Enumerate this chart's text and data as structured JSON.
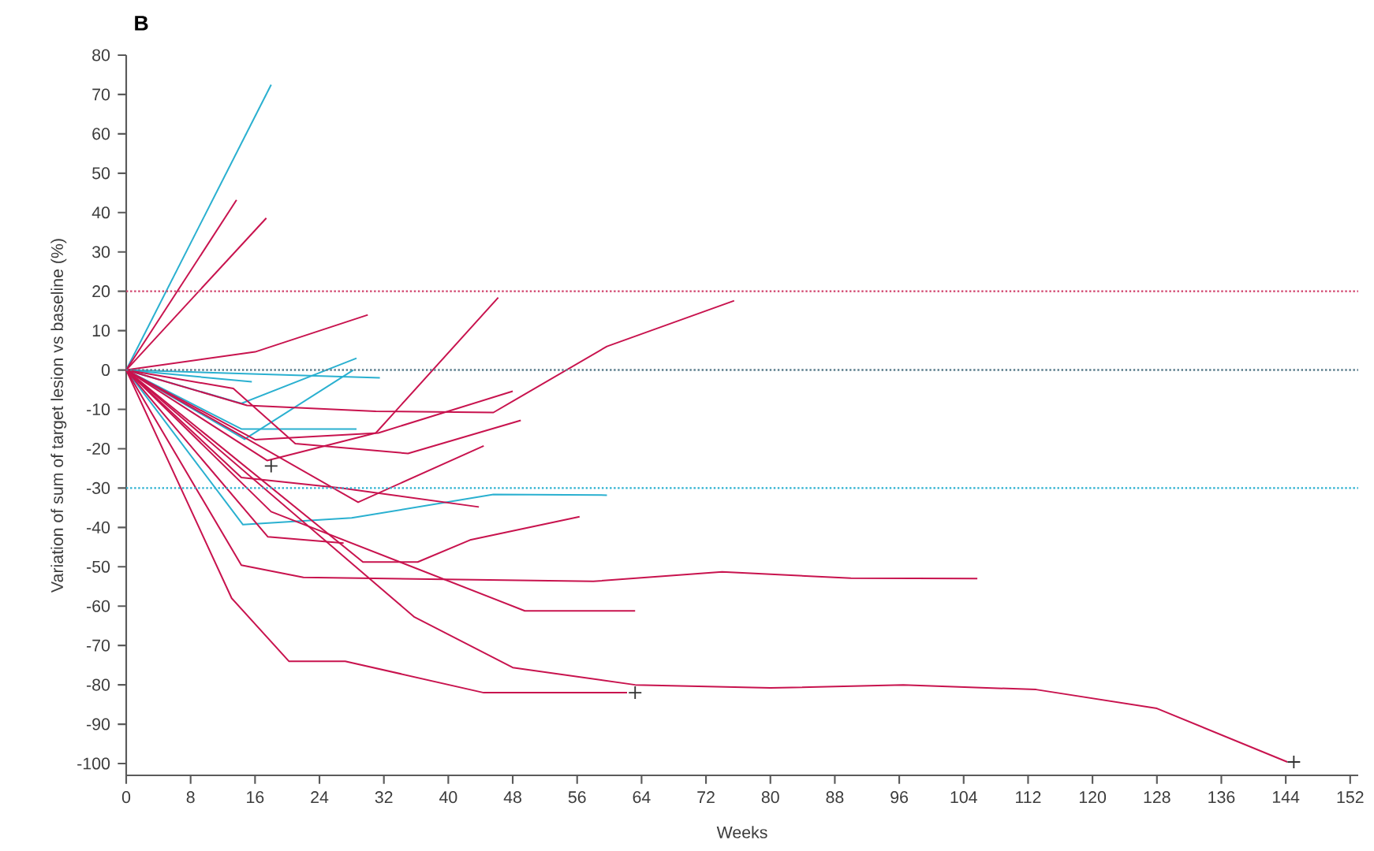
{
  "chart_data": {
    "type": "line",
    "title": "B",
    "xlabel": "Weeks",
    "ylabel": "Variation of sum of target lesion vs baseline (%)",
    "xlim": [
      0,
      153
    ],
    "ylim": [
      -103,
      80
    ],
    "xticks": [
      0,
      8,
      16,
      24,
      32,
      40,
      48,
      56,
      64,
      72,
      80,
      88,
      96,
      104,
      112,
      120,
      128,
      136,
      144,
      152
    ],
    "yticks": [
      -100,
      -90,
      -80,
      -70,
      -60,
      -50,
      -40,
      -30,
      -20,
      -10,
      0,
      10,
      20,
      30,
      40,
      50,
      60,
      70,
      80
    ],
    "grid": false,
    "marker": "none",
    "line_style": "solid",
    "ref_lines": [
      {
        "axis": "y",
        "value": 20,
        "color": "#d0416b",
        "line_style": "dotted"
      },
      {
        "axis": "y",
        "value": 0,
        "color": "#5a7d8c",
        "line_style": "dotted"
      },
      {
        "axis": "y",
        "value": -30,
        "color": "#2ab0d0",
        "line_style": "dotted"
      }
    ],
    "series": [
      {
        "color": "#2ab0d0",
        "x": [
          0,
          18
        ],
        "values": [
          0,
          72.5
        ]
      },
      {
        "color": "#2ab0d0",
        "x": [
          0,
          15.6
        ],
        "values": [
          0,
          -3
        ]
      },
      {
        "color": "#2ab0d0",
        "x": [
          0,
          31.5
        ],
        "values": [
          0,
          -2
        ]
      },
      {
        "color": "#2ab0d0",
        "x": [
          0,
          14.3,
          28.6
        ],
        "values": [
          0,
          -8.5,
          3
        ]
      },
      {
        "color": "#2ab0d0",
        "x": [
          0,
          14.7,
          28.2
        ],
        "values": [
          0,
          -17.6,
          0
        ]
      },
      {
        "color": "#2ab0d0",
        "x": [
          0,
          14.3,
          28.6
        ],
        "values": [
          0,
          -15,
          -15
        ]
      },
      {
        "color": "#2ab0d0",
        "x": [
          0,
          14.5,
          28,
          45.6,
          59.7
        ],
        "values": [
          0,
          -39.3,
          -37.6,
          -31.6,
          -31.8
        ]
      },
      {
        "color": "#c8134e",
        "x": [
          0,
          13.7
        ],
        "values": [
          0,
          43.2
        ]
      },
      {
        "color": "#c8134e",
        "x": [
          0,
          17.4
        ],
        "values": [
          0,
          38.6
        ]
      },
      {
        "color": "#c8134e",
        "x": [
          0,
          16,
          30
        ],
        "values": [
          0,
          4.6,
          14
        ]
      },
      {
        "color": "#c8134e",
        "x": [
          0,
          13.3,
          21,
          35,
          49
        ],
        "values": [
          0,
          -4.7,
          -18.7,
          -21.2,
          -12.8
        ]
      },
      {
        "color": "#c8134e",
        "x": [
          0,
          15,
          31,
          45.6,
          59.7,
          75.5
        ],
        "values": [
          0,
          -9,
          -10.5,
          -10.8,
          6,
          17.6
        ]
      },
      {
        "color": "#c8134e",
        "x": [
          0,
          16,
          31.3,
          48
        ],
        "values": [
          0,
          -17.7,
          -16,
          -5.4
        ]
      },
      {
        "color": "#c8134e",
        "x": [
          0,
          17.5,
          31,
          46.2
        ],
        "values": [
          0,
          -23,
          -16,
          18.4
        ]
      },
      {
        "color": "#c8134e",
        "x": [
          0,
          28.8,
          44.4
        ],
        "values": [
          0,
          -33.6,
          -19.3
        ]
      },
      {
        "color": "#c8134e",
        "x": [
          0,
          14.3,
          26.8,
          43.8
        ],
        "values": [
          0,
          -27.3,
          -30,
          -34.8
        ]
      },
      {
        "color": "#c8134e",
        "x": [
          0,
          17.6,
          27
        ],
        "values": [
          0,
          -42.4,
          -44
        ]
      },
      {
        "color": "#c8134e",
        "x": [
          0,
          14.3,
          22,
          58,
          74,
          90,
          105.7
        ],
        "values": [
          0,
          -49.6,
          -52.7,
          -53.7,
          -51.3,
          -52.9,
          -53
        ]
      },
      {
        "color": "#c8134e",
        "x": [
          0,
          29.4,
          36.2,
          42.7,
          56.3
        ],
        "values": [
          0,
          -48.8,
          -48.8,
          -43.2,
          -37.3
        ]
      },
      {
        "color": "#c8134e",
        "x": [
          0,
          18,
          49.5,
          63.2
        ],
        "values": [
          0,
          -36,
          -61.2,
          -61.2
        ]
      },
      {
        "color": "#c8134e",
        "x": [
          0,
          13.1,
          20.2,
          27.2,
          44.4,
          62.2
        ],
        "values": [
          0,
          -58,
          -74,
          -74,
          -82,
          -82
        ]
      },
      {
        "color": "#c8134e",
        "x": [
          0,
          35.8,
          48,
          63.2,
          80,
          96.5,
          113,
          128,
          144.2
        ],
        "values": [
          0,
          -62.8,
          -75.6,
          -80,
          -80.8,
          -80,
          -81.2,
          -86,
          -99.6
        ]
      },
      {
        "type": "scatter",
        "marker": "cross",
        "color": "#333333",
        "x": [
          18,
          63.2,
          145
        ],
        "values": [
          -24.4,
          -82,
          -99.6
        ]
      }
    ]
  }
}
